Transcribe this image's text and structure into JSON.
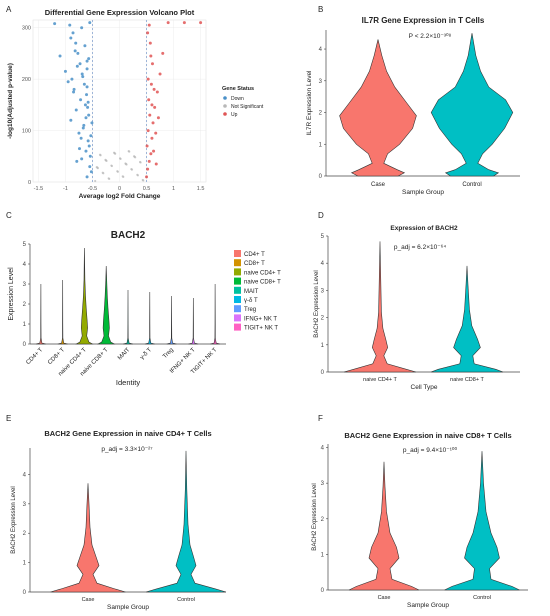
{
  "panel_letters": [
    "A",
    "B",
    "C",
    "D",
    "E",
    "F"
  ],
  "colors": {
    "case": "#f8766d",
    "control": "#00bfc4",
    "down": "#4a90c8",
    "ns": "#b8b8b8",
    "up": "#e05555",
    "threshold": "#7a9acb"
  },
  "chart_data": [
    {
      "id": "A",
      "type": "scatter",
      "title": "Differential Gene Expression Volcano Plot",
      "xlabel": "Average log2 Fold Change",
      "ylabel": "-log10(Adjusted p-value)",
      "xlim": [
        -1.6,
        1.6
      ],
      "ylim": [
        0,
        315
      ],
      "xticks": [
        "-1.5",
        "-1",
        "-0.5",
        "0",
        "0.5",
        "1",
        "1.5"
      ],
      "yticks": [
        "0",
        "100",
        "200",
        "300"
      ],
      "legend": {
        "title": "Gene Status",
        "entries": [
          "Down",
          "Not Significant",
          "Up"
        ],
        "position": "right"
      },
      "thresholds_x": [
        -0.5,
        0.5
      ],
      "series": [
        {
          "name": "Down",
          "points": [
            [
              -0.6,
              10
            ],
            [
              -0.55,
              30
            ],
            [
              -0.7,
              45
            ],
            [
              -0.62,
              60
            ],
            [
              -0.58,
              80
            ],
            [
              -0.75,
              95
            ],
            [
              -0.66,
              110
            ],
            [
              -0.9,
              120
            ],
            [
              -0.57,
              130
            ],
            [
              -0.8,
              140
            ],
            [
              -0.63,
              150
            ],
            [
              -0.72,
              160
            ],
            [
              -0.85,
              175
            ],
            [
              -0.6,
              185
            ],
            [
              -0.95,
              195
            ],
            [
              -0.68,
              205
            ],
            [
              -1.0,
              215
            ],
            [
              -0.78,
              225
            ],
            [
              -0.6,
              235
            ],
            [
              -1.1,
              245
            ],
            [
              -0.82,
              255
            ],
            [
              -0.64,
              265
            ],
            [
              -0.9,
              280
            ],
            [
              -0.7,
              300
            ],
            [
              -0.55,
              310
            ],
            [
              -1.2,
              308
            ],
            [
              -0.52,
              20
            ],
            [
              -0.54,
              50
            ],
            [
              -0.56,
              70
            ],
            [
              -0.53,
              90
            ],
            [
              -0.51,
              115
            ],
            [
              -0.59,
              145
            ],
            [
              -0.61,
              170
            ],
            [
              -0.65,
              190
            ],
            [
              -0.69,
              210
            ],
            [
              -0.73,
              230
            ],
            [
              -0.77,
              250
            ],
            [
              -0.81,
              270
            ],
            [
              -0.86,
              290
            ],
            [
              -0.92,
              305
            ],
            [
              -0.58,
              155
            ],
            [
              -0.62,
              125
            ],
            [
              -0.67,
              105
            ],
            [
              -0.71,
              85
            ],
            [
              -0.74,
              65
            ],
            [
              -0.79,
              40
            ],
            [
              -0.84,
              180
            ],
            [
              -0.88,
              200
            ],
            [
              -0.6,
              220
            ],
            [
              -0.57,
              240
            ]
          ]
        },
        {
          "name": "Up",
          "points": [
            [
              0.5,
              10
            ],
            [
              0.52,
              25
            ],
            [
              0.55,
              40
            ],
            [
              0.58,
              55
            ],
            [
              0.51,
              70
            ],
            [
              0.6,
              85
            ],
            [
              0.53,
              100
            ],
            [
              0.62,
              115
            ],
            [
              0.56,
              130
            ],
            [
              0.65,
              145
            ],
            [
              0.54,
              160
            ],
            [
              0.7,
              175
            ],
            [
              0.59,
              190
            ],
            [
              0.75,
              210
            ],
            [
              0.61,
              230
            ],
            [
              0.8,
              250
            ],
            [
              0.57,
              270
            ],
            [
              0.52,
              290
            ],
            [
              0.55,
              305
            ],
            [
              0.63,
              60
            ],
            [
              0.67,
              95
            ],
            [
              0.72,
              125
            ],
            [
              0.6,
              150
            ],
            [
              0.64,
              180
            ],
            [
              0.68,
              35
            ],
            [
              0.9,
              310
            ],
            [
              1.2,
              310
            ],
            [
              1.5,
              310
            ],
            [
              0.53,
              200
            ],
            [
              0.58,
              245
            ]
          ]
        }
      ]
    },
    {
      "id": "B",
      "type": "violin",
      "title": "IL7R Gene Expression in T Cells",
      "annotation": "P < 2.2×10⁻³⁰⁸",
      "xlabel": "Sample Group",
      "ylabel": "IL7R Expression Level",
      "categories": [
        "Case",
        "Control"
      ],
      "ylim": [
        0,
        4.6
      ],
      "yticks": [
        "0",
        "1",
        "2",
        "3",
        "4"
      ],
      "series": [
        {
          "name": "Case",
          "values": [
            [
              0,
              0.42
            ],
            [
              0.1,
              0.55
            ],
            [
              0.2,
              0.4
            ],
            [
              0.4,
              0.12
            ],
            [
              0.7,
              0.2
            ],
            [
              1.0,
              0.45
            ],
            [
              1.5,
              0.72
            ],
            [
              1.9,
              0.8
            ],
            [
              2.3,
              0.6
            ],
            [
              2.8,
              0.35
            ],
            [
              3.3,
              0.18
            ],
            [
              3.8,
              0.08
            ],
            [
              4.3,
              0.0
            ]
          ]
        },
        {
          "name": "Control",
          "values": [
            [
              0,
              0.45
            ],
            [
              0.1,
              0.55
            ],
            [
              0.2,
              0.35
            ],
            [
              0.4,
              0.12
            ],
            [
              0.7,
              0.22
            ],
            [
              1.0,
              0.42
            ],
            [
              1.5,
              0.68
            ],
            [
              2.0,
              0.85
            ],
            [
              2.4,
              0.7
            ],
            [
              2.8,
              0.35
            ],
            [
              3.3,
              0.18
            ],
            [
              3.8,
              0.08
            ],
            [
              4.5,
              0.0
            ]
          ]
        }
      ]
    },
    {
      "id": "C",
      "type": "violin",
      "title": "BACH2",
      "xlabel": "Identity",
      "ylabel": "Expression Level",
      "categories": [
        "CD4+ T",
        "CD8+ T",
        "naive CD4+ T",
        "naive CD8+ T",
        "MAIT",
        "γ-δ T",
        "Treg",
        "IFNG+ NK T",
        "TIGIT+ NK T"
      ],
      "ylim": [
        0,
        5
      ],
      "yticks": [
        "0",
        "1",
        "2",
        "3",
        "4",
        "5"
      ],
      "legend": {
        "entries": [
          "CD4+ T",
          "CD8+ T",
          "naive CD4+ T",
          "naive CD8+ T",
          "MAIT",
          "γ-δ T",
          "Treg",
          "IFNG+ NK T",
          "TIGIT+ NK T"
        ],
        "position": "right"
      },
      "series_colors": [
        "#f8766d",
        "#d39200",
        "#93aa00",
        "#00ba38",
        "#00c19f",
        "#00b9e3",
        "#619cff",
        "#db72fb",
        "#ff61c3"
      ],
      "max_values": [
        3.0,
        3.2,
        4.8,
        3.9,
        2.7,
        2.6,
        2.4,
        2.3,
        3.0
      ]
    },
    {
      "id": "D",
      "type": "violin",
      "title": "Expression of BACH2",
      "annotation": "p_adj = 6.2×10⁻⁶⁴",
      "xlabel": "Cell Type",
      "ylabel": "BACH2 Expression Level",
      "categories": [
        "naive CD4+ T",
        "naive CD8+ T"
      ],
      "ylim": [
        0,
        5
      ],
      "yticks": [
        "0",
        "1",
        "2",
        "3",
        "4",
        "5"
      ],
      "series": [
        {
          "name": "naive CD4+ T",
          "values": [
            [
              0,
              0.75
            ],
            [
              0.1,
              0.55
            ],
            [
              0.3,
              0.15
            ],
            [
              0.6,
              0.08
            ],
            [
              0.9,
              0.16
            ],
            [
              1.2,
              0.12
            ],
            [
              1.6,
              0.06
            ],
            [
              2.2,
              0.03
            ],
            [
              3.5,
              0.015
            ],
            [
              4.8,
              0.0
            ]
          ]
        },
        {
          "name": "naive CD8+ T",
          "values": [
            [
              0,
              0.75
            ],
            [
              0.1,
              0.6
            ],
            [
              0.3,
              0.15
            ],
            [
              0.6,
              0.12
            ],
            [
              0.9,
              0.28
            ],
            [
              1.2,
              0.22
            ],
            [
              1.7,
              0.1
            ],
            [
              2.3,
              0.05
            ],
            [
              3.2,
              0.02
            ],
            [
              3.9,
              0.0
            ]
          ]
        }
      ]
    },
    {
      "id": "E",
      "type": "violin",
      "title": "BACH2 Gene Expression in naive CD4+ T Cells",
      "annotation": "p_adj = 3.3×10⁻²⁷",
      "xlabel": "Sample Group",
      "ylabel": "BACH2 Expression Level",
      "categories": [
        "Case",
        "Control"
      ],
      "ylim": [
        0,
        4.9
      ],
      "yticks": [
        "0",
        "1",
        "2",
        "3",
        "4"
      ],
      "series": [
        {
          "name": "Case",
          "values": [
            [
              0,
              0.75
            ],
            [
              0.1,
              0.55
            ],
            [
              0.3,
              0.18
            ],
            [
              0.6,
              0.1
            ],
            [
              0.9,
              0.22
            ],
            [
              1.2,
              0.16
            ],
            [
              1.6,
              0.08
            ],
            [
              2.2,
              0.04
            ],
            [
              3.0,
              0.02
            ],
            [
              3.7,
              0.0
            ]
          ]
        },
        {
          "name": "Control",
          "values": [
            [
              0,
              0.8
            ],
            [
              0.1,
              0.6
            ],
            [
              0.3,
              0.18
            ],
            [
              0.6,
              0.1
            ],
            [
              0.9,
              0.2
            ],
            [
              1.2,
              0.15
            ],
            [
              1.6,
              0.08
            ],
            [
              2.3,
              0.04
            ],
            [
              3.5,
              0.015
            ],
            [
              4.8,
              0.0
            ]
          ]
        }
      ]
    },
    {
      "id": "F",
      "type": "violin",
      "title": "BACH2 Gene Expression in naive CD8+ T Cells",
      "annotation": "p_adj = 9.4×10⁻¹⁰⁰",
      "xlabel": "Sample Group",
      "ylabel": "BACH2 Expression Level",
      "categories": [
        "Case",
        "Control"
      ],
      "ylim": [
        0,
        4.1
      ],
      "yticks": [
        "0",
        "1",
        "2",
        "3",
        "4"
      ],
      "series": [
        {
          "name": "Case",
          "values": [
            [
              0,
              0.7
            ],
            [
              0.1,
              0.55
            ],
            [
              0.3,
              0.16
            ],
            [
              0.6,
              0.12
            ],
            [
              0.9,
              0.3
            ],
            [
              1.2,
              0.25
            ],
            [
              1.6,
              0.12
            ],
            [
              2.2,
              0.05
            ],
            [
              2.9,
              0.02
            ],
            [
              3.6,
              0.0
            ]
          ]
        },
        {
          "name": "Control",
          "values": [
            [
              0,
              0.75
            ],
            [
              0.1,
              0.6
            ],
            [
              0.3,
              0.18
            ],
            [
              0.6,
              0.15
            ],
            [
              0.9,
              0.35
            ],
            [
              1.2,
              0.3
            ],
            [
              1.6,
              0.18
            ],
            [
              2.2,
              0.08
            ],
            [
              3.0,
              0.03
            ],
            [
              3.9,
              0.0
            ]
          ]
        }
      ]
    }
  ]
}
